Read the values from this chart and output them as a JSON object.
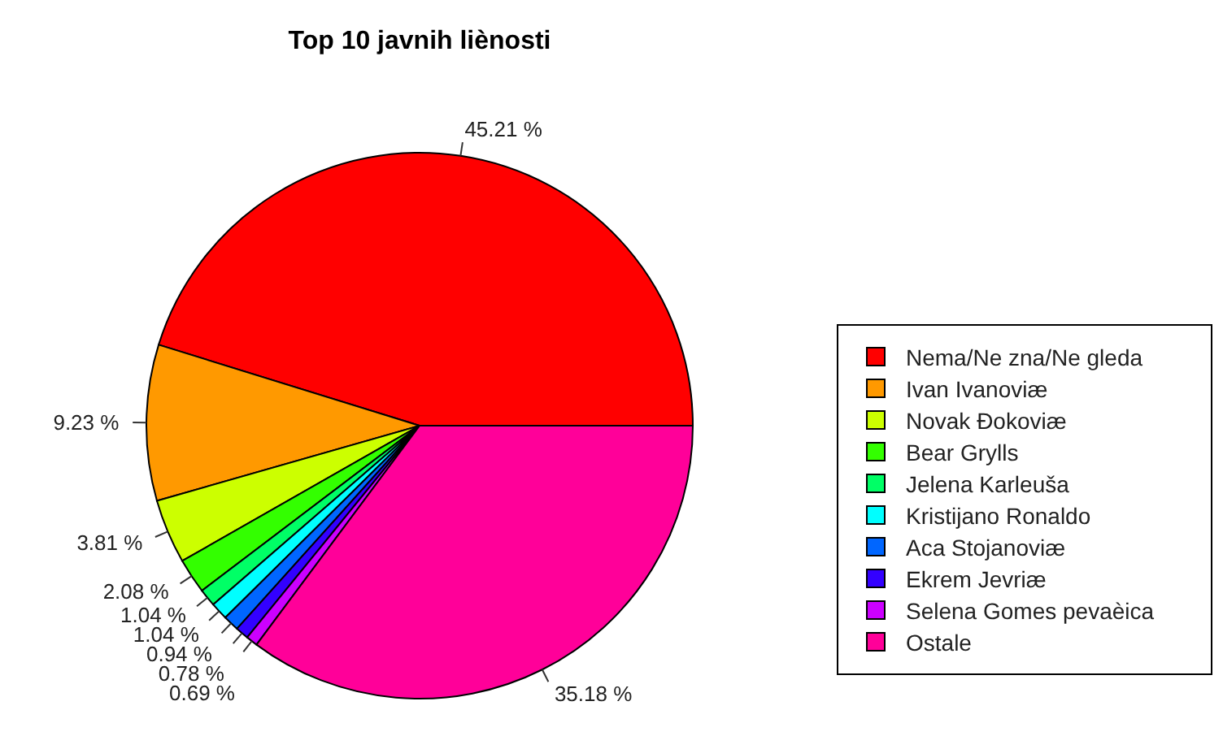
{
  "chart_data": {
    "type": "pie",
    "title": "Top 10 javnih liènosti",
    "categories": [
      "Nema/Ne zna/Ne gleda",
      "Ivan Ivanoviæ",
      "Novak Ðokoviæ",
      "Bear Grylls",
      "Jelena Karleuša",
      "Kristijano Ronaldo",
      "Aca Stojanoviæ",
      "Ekrem Jevriæ",
      "Selena Gomes pevaèica",
      "Ostale"
    ],
    "values": [
      45.21,
      9.23,
      3.81,
      2.08,
      1.04,
      1.04,
      0.94,
      0.78,
      0.69,
      35.18
    ],
    "value_labels": [
      "45.21 %",
      "9.23 %",
      "3.81 %",
      "2.08 %",
      "1.04 %",
      "1.04 %",
      "0.94 %",
      "0.78 %",
      "0.69 %",
      "35.18 %"
    ],
    "colors": [
      "#ff0000",
      "#ff9900",
      "#ccff00",
      "#33ff00",
      "#00ff66",
      "#00ffff",
      "#0066ff",
      "#3300ff",
      "#cc00ff",
      "#ff0099"
    ],
    "legend": "right"
  }
}
